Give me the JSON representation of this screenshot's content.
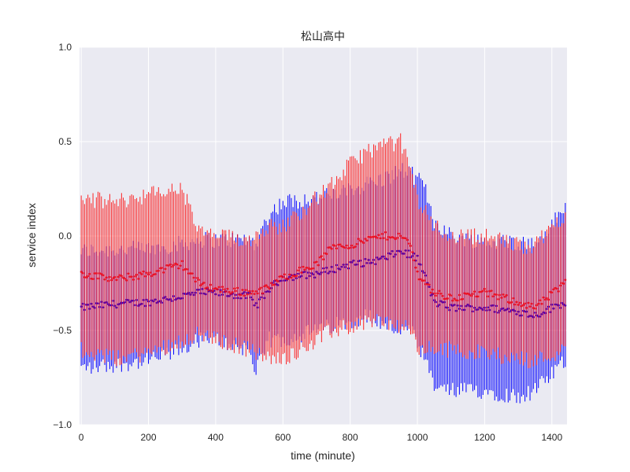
{
  "chart_data": {
    "type": "line",
    "title": "松山高中",
    "xlabel": "time (minute)",
    "ylabel": "service index",
    "xlim": [
      -5,
      1445
    ],
    "ylim": [
      -1.0,
      1.0
    ],
    "x_ticks": [
      0,
      200,
      400,
      600,
      800,
      1000,
      1200,
      1400
    ],
    "x_tick_labels": [
      "0",
      "200",
      "400",
      "600",
      "800",
      "1000",
      "1200",
      "1400"
    ],
    "y_ticks": [
      -1.0,
      -0.5,
      0.0,
      0.5,
      1.0
    ],
    "y_tick_labels": [
      "−1.0",
      "−0.5",
      "0.0",
      "0.5",
      "1.0"
    ],
    "grid": true,
    "background": "#eaeaf2",
    "grid_color": "#ffffff",
    "errorbar_step_minutes": 5,
    "series": [
      {
        "color": "#0000ff",
        "marker": "dot",
        "x": [
          0,
          100,
          200,
          300,
          350,
          400,
          500,
          520,
          560,
          600,
          700,
          800,
          850,
          900,
          950,
          980,
          1000,
          1020,
          1050,
          1100,
          1200,
          1300,
          1350,
          1440
        ],
        "mean": [
          -0.38,
          -0.36,
          -0.35,
          -0.32,
          -0.3,
          -0.3,
          -0.32,
          -0.37,
          -0.28,
          -0.22,
          -0.2,
          -0.15,
          -0.14,
          -0.12,
          -0.08,
          -0.1,
          -0.12,
          -0.2,
          -0.35,
          -0.38,
          -0.38,
          -0.4,
          -0.42,
          -0.35
        ],
        "upper": [
          -0.08,
          -0.07,
          -0.07,
          -0.04,
          -0.02,
          -0.02,
          -0.02,
          -0.04,
          0.12,
          0.18,
          0.2,
          0.24,
          0.28,
          0.3,
          0.35,
          0.33,
          0.3,
          0.27,
          0.08,
          0.0,
          -0.03,
          -0.03,
          -0.05,
          0.15
        ],
        "lower": [
          -0.7,
          -0.68,
          -0.66,
          -0.6,
          -0.55,
          -0.55,
          -0.6,
          -0.72,
          -0.55,
          -0.55,
          -0.5,
          -0.45,
          -0.42,
          -0.47,
          -0.5,
          -0.5,
          -0.58,
          -0.65,
          -0.8,
          -0.82,
          -0.82,
          -0.85,
          -0.82,
          -0.66
        ]
      },
      {
        "color": "#ff0000",
        "marker": "dot",
        "x": [
          0,
          100,
          200,
          300,
          350,
          400,
          500,
          550,
          600,
          700,
          750,
          800,
          850,
          900,
          950,
          980,
          1000,
          1050,
          1100,
          1200,
          1300,
          1350,
          1440
        ],
        "mean": [
          -0.2,
          -0.23,
          -0.2,
          -0.15,
          -0.25,
          -0.28,
          -0.3,
          -0.28,
          -0.22,
          -0.15,
          -0.05,
          -0.05,
          -0.02,
          0.0,
          0.0,
          -0.05,
          -0.2,
          -0.3,
          -0.33,
          -0.3,
          -0.35,
          -0.38,
          -0.25
        ],
        "upper": [
          0.2,
          0.18,
          0.22,
          0.25,
          0.02,
          0.0,
          -0.02,
          0.05,
          0.05,
          0.2,
          0.28,
          0.38,
          0.45,
          0.48,
          0.5,
          0.35,
          0.2,
          0.05,
          0.0,
          0.0,
          -0.05,
          -0.05,
          0.12
        ],
        "lower": [
          -0.6,
          -0.65,
          -0.62,
          -0.55,
          -0.52,
          -0.55,
          -0.6,
          -0.65,
          -0.65,
          -0.55,
          -0.5,
          -0.48,
          -0.45,
          -0.45,
          -0.48,
          -0.5,
          -0.6,
          -0.6,
          -0.6,
          -0.62,
          -0.65,
          -0.66,
          -0.6
        ]
      }
    ]
  }
}
